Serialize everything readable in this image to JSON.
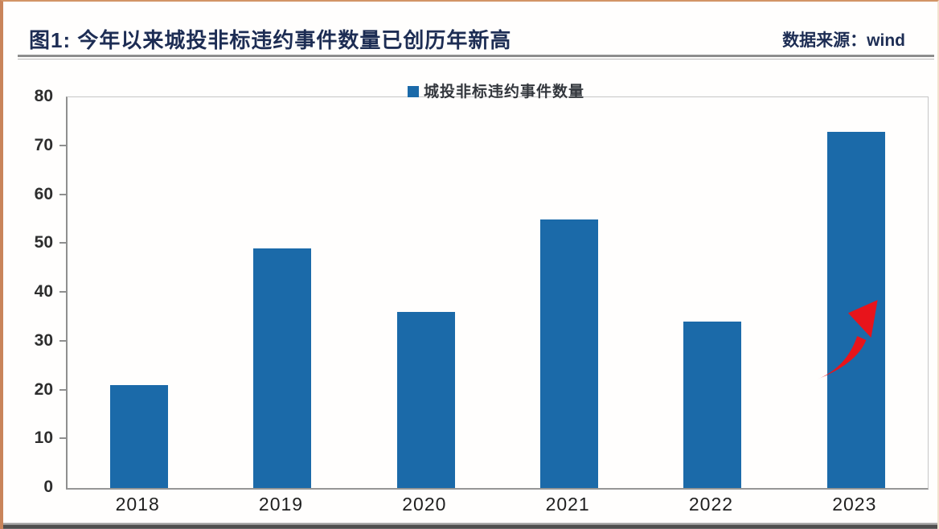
{
  "header": {
    "title": "图1: 今年以来城投非标违约事件数量已创历年新高",
    "source": "数据来源：wind"
  },
  "chart_data": {
    "type": "bar",
    "title": "图1: 今年以来城投非标违约事件数量已创历年新高",
    "categories": [
      "2018",
      "2019",
      "2020",
      "2021",
      "2022",
      "2023"
    ],
    "values": [
      21,
      49,
      36,
      55,
      34,
      73
    ],
    "series_name": "城投非标违约事件数量",
    "legend_label": "城投非标违约事件数量",
    "legend_position": "top-center",
    "xlabel": "",
    "ylabel": "",
    "ylim": [
      0,
      80
    ],
    "yticks": [
      0,
      10,
      20,
      30,
      40,
      50,
      60,
      70,
      80
    ],
    "grid": false,
    "bar_color": "#1b6aa9",
    "annotation": {
      "type": "curved-up-arrow",
      "color": "#e8141b",
      "near_category": "2023"
    }
  },
  "colors": {
    "bar_blue": "#1b6aa9",
    "arrow_red": "#e8141b",
    "title_navy": "#1d2d54",
    "frame_orange": "#c9845a",
    "axis_gray": "#8f8f8f"
  }
}
